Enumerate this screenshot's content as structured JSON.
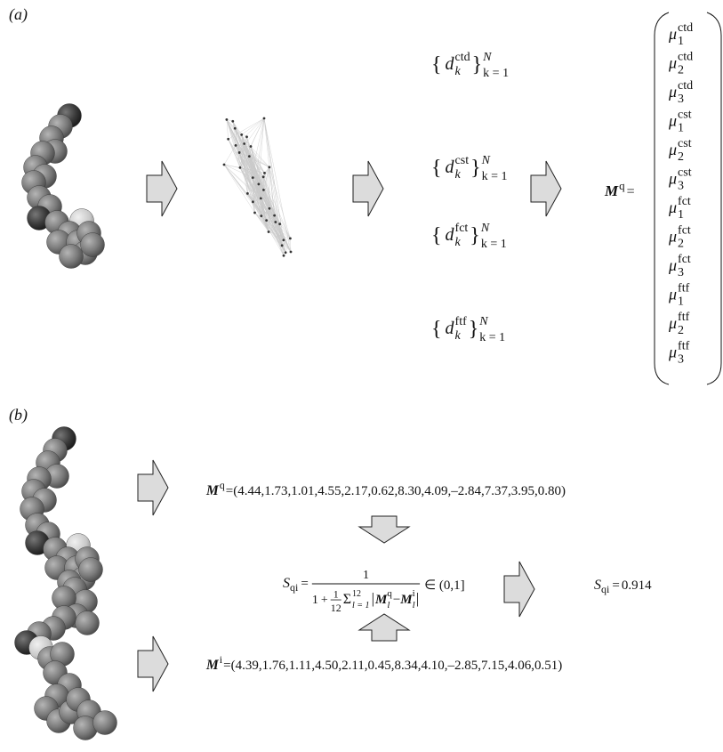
{
  "panel_a": {
    "label": "(a)",
    "sets": {
      "open": "{",
      "close": "}",
      "symbol": "d",
      "index": "k",
      "upper": "N",
      "lower": "k = 1",
      "features": [
        "ctd",
        "cst",
        "fct",
        "ftf"
      ]
    },
    "vector": {
      "symbol": "M",
      "sup": "q",
      "equals": "=",
      "entry_symbol": "μ",
      "entries": [
        {
          "sub": "1",
          "sup": "ctd"
        },
        {
          "sub": "2",
          "sup": "ctd"
        },
        {
          "sub": "3",
          "sup": "ctd"
        },
        {
          "sub": "1",
          "sup": "cst"
        },
        {
          "sub": "2",
          "sup": "cst"
        },
        {
          "sub": "3",
          "sup": "cst"
        },
        {
          "sub": "1",
          "sup": "fct"
        },
        {
          "sub": "2",
          "sup": "fct"
        },
        {
          "sub": "3",
          "sup": "fct"
        },
        {
          "sub": "1",
          "sup": "ftf"
        },
        {
          "sub": "2",
          "sup": "ftf"
        },
        {
          "sub": "3",
          "sup": "ftf"
        }
      ]
    }
  },
  "panel_b": {
    "label": "(b)",
    "query": {
      "symbol": "M",
      "sup": "q",
      "equals": "=",
      "open": "(",
      "separator": ", ",
      "close": ")",
      "values": [
        "4.44",
        "1.73",
        "1.01",
        "4.55",
        "2.17",
        "0.62",
        "8.30",
        "4.09",
        "–2.84",
        "7.37",
        "3.95",
        "0.80"
      ]
    },
    "target": {
      "symbol": "M",
      "sup": "i",
      "equals": "=",
      "open": "(",
      "separator": ", ",
      "close": ")",
      "values": [
        "4.39",
        "1.76",
        "1.11",
        "4.50",
        "2.11",
        "0.45",
        "8.34",
        "4.10",
        "–2.85",
        "7.15",
        "4.06",
        "0.51"
      ]
    },
    "formula": {
      "lhs": "S",
      "lhs_sub": "qi",
      "equals": "=",
      "numerator": "1",
      "one": "1",
      "plus": "+",
      "inner_numerator": "1",
      "inner_denominator": "12",
      "sum": "Σ",
      "sum_lower": "l = 1",
      "sum_upper": "12",
      "bar": "|",
      "matrix": "M",
      "index": "l",
      "q": "q",
      "minus": "−",
      "i": "i",
      "range": "∈ (0,1]"
    },
    "result": {
      "symbol": "S",
      "sub": "qi",
      "equals": "=",
      "value": "0.914"
    }
  }
}
